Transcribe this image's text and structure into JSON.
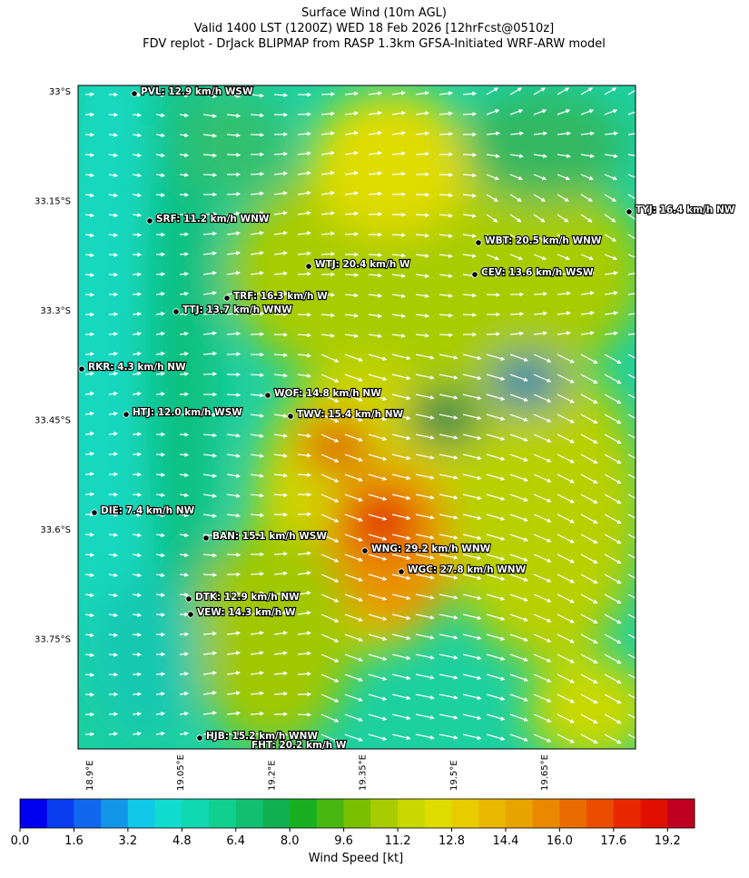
{
  "header": {
    "title": "Surface Wind (10m AGL)",
    "subtitle": "Valid 1400 LST (1200Z) WED 18 Feb 2026 [12hrFcst@0510z]",
    "source": "FDV replot - DrJack BLIPMAP from RASP 1.3km GFSA-Initiated WRF-ARW model"
  },
  "map": {
    "lat_ticks": [
      {
        "value": -33,
        "label": "33°S"
      },
      {
        "value": -33.15,
        "label": "33.15°S"
      },
      {
        "value": -33.3,
        "label": "33.3°S"
      },
      {
        "value": -33.45,
        "label": "33.45°S"
      },
      {
        "value": -33.6,
        "label": "33.6°S"
      },
      {
        "value": -33.75,
        "label": "33.75°S"
      }
    ],
    "lon_ticks": [
      {
        "value": 18.9,
        "label": "18.9°E"
      },
      {
        "value": 19.05,
        "label": "19.05°E"
      },
      {
        "value": 19.2,
        "label": "19.2°E"
      },
      {
        "value": 19.35,
        "label": "19.35°E"
      },
      {
        "value": 19.5,
        "label": "19.5°E"
      },
      {
        "value": 19.65,
        "label": "19.65°E"
      }
    ],
    "stations": [
      "PVL: 12.9 km/h WSW",
      "SRF: 11.2 km/h WNW",
      "WTJ: 20.4 km/h W",
      "TRF: 16.3 km/h W",
      "TTJ: 13.7 km/h WNW",
      "RKR: 4.3 km/h NW",
      "WOF: 14.8 km/h NW",
      "HTJ: 12.0 km/h WSW",
      "TWV: 15.4 km/h NW",
      "DIE: 7.4 km/h NW",
      "BAN: 15.1 km/h WSW",
      "WNG: 29.2 km/h WNW",
      "WGC: 27.8 km/h WNW",
      "DTK: 12.9 km/h NW",
      "VEW: 14.3 km/h W",
      "HJB: 15.2 km/h WNW",
      "FHT: 20.2 km/h W",
      "TYJ: 16.4 km/h NW",
      "WBT: 20.5 km/h WNW",
      "CEV: 13.6 km/h WSW"
    ]
  },
  "colorbar": {
    "label": "Wind Speed [kt]",
    "lim": [
      0,
      20
    ],
    "colors": [
      "#0000f0",
      "#0a3cf0",
      "#1068ee",
      "#1296e8",
      "#10c8e8",
      "#10dcd0",
      "#10d8b0",
      "#10d090",
      "#10c070",
      "#10b050",
      "#18b020",
      "#48b810",
      "#78c000",
      "#a8cc00",
      "#c8d800",
      "#e0dc00",
      "#e8cc00",
      "#eab800",
      "#eaa400",
      "#ea8800",
      "#ea6c00",
      "#ea4c00",
      "#e82800",
      "#e01000",
      "#c00020"
    ],
    "ticks": [
      {
        "value": 0,
        "label": "0.0"
      },
      1.6,
      3.2,
      4.8,
      6.4,
      {
        "value": 8,
        "label": "8.0"
      },
      9.6,
      11.2,
      12.8,
      14.4,
      {
        "value": 16,
        "label": "16.0"
      },
      17.6,
      19.2
    ]
  }
}
